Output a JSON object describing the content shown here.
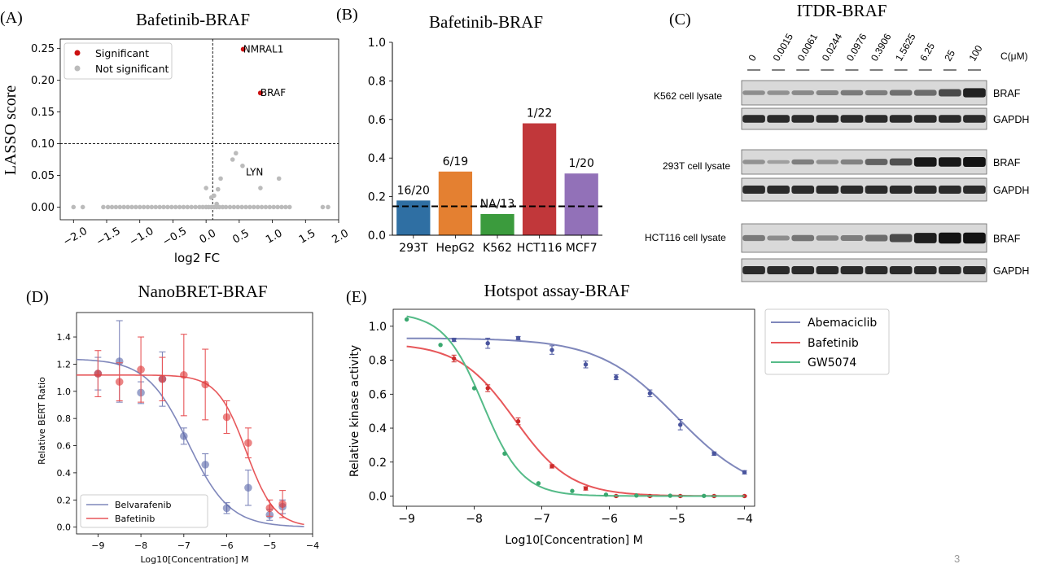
{
  "page_number": "3",
  "colors": {
    "significant": "#cc1111",
    "not_significant": "#bbbbbb",
    "blue_curve": "#7f87bb",
    "blue_pt": "#5866a8",
    "red_curve": "#e7575a",
    "red_pt": "#dd3333",
    "green_curve": "#55bb88",
    "ab_pt": "#4a559e",
    "ba_pt": "#cc2b2b",
    "gw_pt": "#3aa86f"
  },
  "chart_data": [
    {
      "panel_label": "(A)",
      "type": "scatter",
      "title": "Bafetinib-BRAF",
      "xlabel": "log2 FC",
      "ylabel": "LASSO score",
      "xlim": [
        -2.2,
        2.0
      ],
      "ylim": [
        -0.02,
        0.265
      ],
      "xticks": [
        -2.0,
        -1.5,
        -1.0,
        -0.5,
        0.0,
        0.5,
        1.0,
        1.5,
        2.0
      ],
      "xtick_labels": [
        "−2.0",
        "−1.5",
        "−1.0",
        "−0.5",
        "0.0",
        "0.5",
        "1.0",
        "1.5",
        "2.0"
      ],
      "yticks": [
        0.0,
        0.05,
        0.1,
        0.15,
        0.2,
        0.25
      ],
      "ytick_labels": [
        "0.00",
        "0.05",
        "0.10",
        "0.15",
        "0.20",
        "0.25"
      ],
      "x_threshold": 0.1,
      "y_threshold": 0.1,
      "legend": [
        "Significant",
        "Not significant"
      ],
      "legend_position": "top-left",
      "significant": [
        {
          "x": 0.56,
          "y": 0.249,
          "label": "NMRAL1"
        },
        {
          "x": 0.82,
          "y": 0.18,
          "label": "BRAF"
        }
      ],
      "annotations": [
        {
          "x": 0.6,
          "y": 0.055,
          "label": "LYN"
        }
      ],
      "not_significant": [
        [
          -2.0,
          0
        ],
        [
          -1.86,
          0
        ],
        [
          -1.55,
          0
        ],
        [
          -1.48,
          0
        ],
        [
          -1.42,
          0
        ],
        [
          -1.36,
          0
        ],
        [
          -1.3,
          0
        ],
        [
          -1.24,
          0
        ],
        [
          -1.18,
          0
        ],
        [
          -1.12,
          0
        ],
        [
          -1.06,
          0
        ],
        [
          -1.0,
          0
        ],
        [
          -0.94,
          0
        ],
        [
          -0.88,
          0
        ],
        [
          -0.82,
          0
        ],
        [
          -0.76,
          0
        ],
        [
          -0.7,
          0
        ],
        [
          -0.64,
          0
        ],
        [
          -0.58,
          0
        ],
        [
          -0.52,
          0
        ],
        [
          -0.46,
          0
        ],
        [
          -0.4,
          0
        ],
        [
          -0.34,
          0
        ],
        [
          -0.28,
          0
        ],
        [
          -0.22,
          0
        ],
        [
          -0.16,
          0
        ],
        [
          -0.1,
          0
        ],
        [
          -0.05,
          0
        ],
        [
          0.0,
          0
        ],
        [
          0.04,
          0
        ],
        [
          0.08,
          0
        ],
        [
          0.12,
          0
        ],
        [
          0.16,
          0
        ],
        [
          0.2,
          0
        ],
        [
          0.25,
          0
        ],
        [
          0.3,
          0
        ],
        [
          0.36,
          0
        ],
        [
          0.42,
          0
        ],
        [
          0.48,
          0
        ],
        [
          0.54,
          0
        ],
        [
          0.6,
          0
        ],
        [
          0.66,
          0
        ],
        [
          0.72,
          0
        ],
        [
          0.78,
          0
        ],
        [
          0.84,
          0
        ],
        [
          0.9,
          0
        ],
        [
          0.96,
          0
        ],
        [
          1.02,
          0
        ],
        [
          1.08,
          0
        ],
        [
          1.14,
          0
        ],
        [
          1.2,
          0
        ],
        [
          1.26,
          0
        ],
        [
          1.76,
          0
        ],
        [
          1.84,
          0
        ],
        [
          0.0,
          0.03
        ],
        [
          0.08,
          0.015
        ],
        [
          0.12,
          0.018
        ],
        [
          0.16,
          0.005
        ],
        [
          0.18,
          0.028
        ],
        [
          0.22,
          0.045
        ],
        [
          0.4,
          0.075
        ],
        [
          0.45,
          0.085
        ],
        [
          0.55,
          0.065
        ],
        [
          0.82,
          0.03
        ],
        [
          1.1,
          0.045
        ]
      ]
    },
    {
      "panel_label": "(B)",
      "type": "bar",
      "title": "Bafetinib-BRAF",
      "categories": [
        "293T",
        "HepG2",
        "K562",
        "HCT116",
        "MCF7"
      ],
      "values": [
        0.18,
        0.33,
        0.11,
        0.58,
        0.32
      ],
      "bar_labels": [
        "16/20",
        "6/19",
        "NA/13",
        "1/22",
        "1/20"
      ],
      "bar_colors": [
        "#2f6fa3",
        "#e48031",
        "#3b9b3d",
        "#c1373a",
        "#9271b8"
      ],
      "threshold": 0.15,
      "ylim": [
        0,
        1.0
      ],
      "yticks": [
        "0.0",
        "0.2",
        "0.4",
        "0.6",
        "0.8",
        "1.0"
      ]
    },
    {
      "panel_label": "(D)",
      "type": "line",
      "title": "NanoBRET-BRAF",
      "xlabel": "Log10[Concentration] M",
      "ylabel": "Relative BERT Ratio",
      "xlim": [
        -9.5,
        -4.0
      ],
      "ylim": [
        -0.05,
        1.58
      ],
      "xticks": [
        -9,
        -8,
        -7,
        -6,
        -5,
        -4
      ],
      "xtick_labels": [
        "−9",
        "−8",
        "−7",
        "−6",
        "−5",
        "−4"
      ],
      "yticks": [
        "0.0",
        "0.2",
        "0.4",
        "0.6",
        "0.8",
        "1.0",
        "1.2",
        "1.4"
      ],
      "legend_position": "bottom-left",
      "series": [
        {
          "name": "Belvarafenib",
          "top": 1.24,
          "bottom": 0.0,
          "log_ec50": -6.9,
          "hill": 0.9,
          "points": [
            {
              "x": -9.0,
              "y": 1.13,
              "err": 0.12
            },
            {
              "x": -8.5,
              "y": 1.22,
              "err": 0.3
            },
            {
              "x": -8.0,
              "y": 0.99,
              "err": 0.08
            },
            {
              "x": -7.5,
              "y": 1.09,
              "err": 0.2
            },
            {
              "x": -7.0,
              "y": 0.67,
              "err": 0.06
            },
            {
              "x": -6.5,
              "y": 0.46,
              "err": 0.08
            },
            {
              "x": -6.0,
              "y": 0.14,
              "err": 0.04
            },
            {
              "x": -5.5,
              "y": 0.29,
              "err": 0.13
            },
            {
              "x": -5.0,
              "y": 0.09,
              "err": 0.04
            },
            {
              "x": -4.7,
              "y": 0.15,
              "err": 0.05
            }
          ]
        },
        {
          "name": "Bafetinib",
          "top": 1.12,
          "bottom": 0.0,
          "log_ec50": -5.55,
          "hill": 1.3,
          "points": [
            {
              "x": -9.0,
              "y": 1.13,
              "err": 0.17
            },
            {
              "x": -8.5,
              "y": 1.07,
              "err": 0.14
            },
            {
              "x": -8.0,
              "y": 1.16,
              "err": 0.24
            },
            {
              "x": -7.5,
              "y": 1.09,
              "err": 0.16
            },
            {
              "x": -7.0,
              "y": 1.12,
              "err": 0.3
            },
            {
              "x": -6.5,
              "y": 1.05,
              "err": 0.26
            },
            {
              "x": -6.0,
              "y": 0.81,
              "err": 0.12
            },
            {
              "x": -5.5,
              "y": 0.62,
              "err": 0.11
            },
            {
              "x": -5.0,
              "y": 0.14,
              "err": 0.06
            },
            {
              "x": -4.7,
              "y": 0.17,
              "err": 0.1
            }
          ]
        }
      ]
    },
    {
      "panel_label": "(E)",
      "type": "line",
      "title": "Hotspot assay-BRAF",
      "xlabel": "Log10[Concentration] M",
      "ylabel": "Relative kinase activity",
      "xlim": [
        -9.2,
        -3.85
      ],
      "ylim": [
        -0.06,
        1.1
      ],
      "xticks": [
        -9,
        -8,
        -7,
        -6,
        -5,
        -4
      ],
      "xtick_labels": [
        "−9",
        "−8",
        "−7",
        "−6",
        "−5",
        "−4"
      ],
      "yticks": [
        "0.0",
        "0.2",
        "0.4",
        "0.6",
        "0.8",
        "1.0"
      ],
      "legend_position": "outside-right",
      "series": [
        {
          "name": "Abemaciclib",
          "top": 0.93,
          "bottom": 0.0,
          "log_ec50": -5.0,
          "hill": 0.75,
          "points": [
            {
              "x": -8.3,
              "y": 0.92,
              "err": 0.01
            },
            {
              "x": -7.8,
              "y": 0.9,
              "err": 0.03
            },
            {
              "x": -7.35,
              "y": 0.93,
              "err": 0.01
            },
            {
              "x": -6.85,
              "y": 0.86,
              "err": 0.025
            },
            {
              "x": -6.35,
              "y": 0.775,
              "err": 0.02
            },
            {
              "x": -5.9,
              "y": 0.7,
              "err": 0.015
            },
            {
              "x": -5.4,
              "y": 0.605,
              "err": 0.02
            },
            {
              "x": -4.95,
              "y": 0.42,
              "err": 0.03
            },
            {
              "x": -4.45,
              "y": 0.25,
              "err": 0.01
            },
            {
              "x": -4.0,
              "y": 0.14,
              "err": 0.01
            }
          ]
        },
        {
          "name": "Bafetinib",
          "top": 0.9,
          "bottom": 0.0,
          "log_ec50": -7.4,
          "hill": 1.05,
          "points": [
            {
              "x": -8.3,
              "y": 0.81,
              "err": 0.02
            },
            {
              "x": -7.8,
              "y": 0.635,
              "err": 0.02
            },
            {
              "x": -7.35,
              "y": 0.44,
              "err": 0.02
            },
            {
              "x": -6.85,
              "y": 0.175,
              "err": 0.01
            },
            {
              "x": -6.35,
              "y": 0.045,
              "err": 0.01
            },
            {
              "x": -5.9,
              "y": 0.0,
              "err": 0.005
            },
            {
              "x": -5.4,
              "y": 0.0,
              "err": 0.005
            },
            {
              "x": -4.95,
              "y": 0.0,
              "err": 0.005
            },
            {
              "x": -4.45,
              "y": 0.0,
              "err": 0.005
            },
            {
              "x": -4.0,
              "y": 0.0,
              "err": 0.005
            }
          ]
        },
        {
          "name": "GW5074",
          "top": 1.08,
          "bottom": 0.0,
          "log_ec50": -7.87,
          "hill": 1.5,
          "points": [
            {
              "x": -9.0,
              "y": 1.04
            },
            {
              "x": -8.5,
              "y": 0.89
            },
            {
              "x": -8.0,
              "y": 0.635
            },
            {
              "x": -7.55,
              "y": 0.25
            },
            {
              "x": -7.05,
              "y": 0.075
            },
            {
              "x": -6.55,
              "y": 0.03
            },
            {
              "x": -6.05,
              "y": 0.008
            },
            {
              "x": -5.6,
              "y": 0.003
            },
            {
              "x": -5.1,
              "y": 0.002
            },
            {
              "x": -4.6,
              "y": 0.001
            }
          ]
        }
      ]
    }
  ],
  "western_blot": {
    "panel_label": "(C)",
    "title": "ITDR-BRAF",
    "concentrations": [
      "0",
      "0.0015",
      "0.0061",
      "0.0244",
      "0.0976",
      "0.3906",
      "1.5625",
      "6.25",
      "25",
      "100"
    ],
    "unit": "C(μM)",
    "groups": [
      {
        "lysate": "K562 cell lysate",
        "target": "BRAF",
        "control": "GAPDH",
        "target_intensity": [
          0.32,
          0.3,
          0.34,
          0.36,
          0.42,
          0.4,
          0.48,
          0.5,
          0.68,
          0.9
        ]
      },
      {
        "lysate": "293T cell lysate",
        "target": "BRAF",
        "control": "GAPDH",
        "target_intensity": [
          0.3,
          0.22,
          0.4,
          0.3,
          0.38,
          0.55,
          0.65,
          0.95,
          0.95,
          0.98
        ]
      },
      {
        "lysate": "HCT116 cell lysate",
        "target": "BRAF",
        "control": "GAPDH",
        "target_intensity": [
          0.42,
          0.32,
          0.45,
          0.35,
          0.4,
          0.5,
          0.68,
          0.92,
          0.98,
          0.98
        ]
      }
    ]
  }
}
